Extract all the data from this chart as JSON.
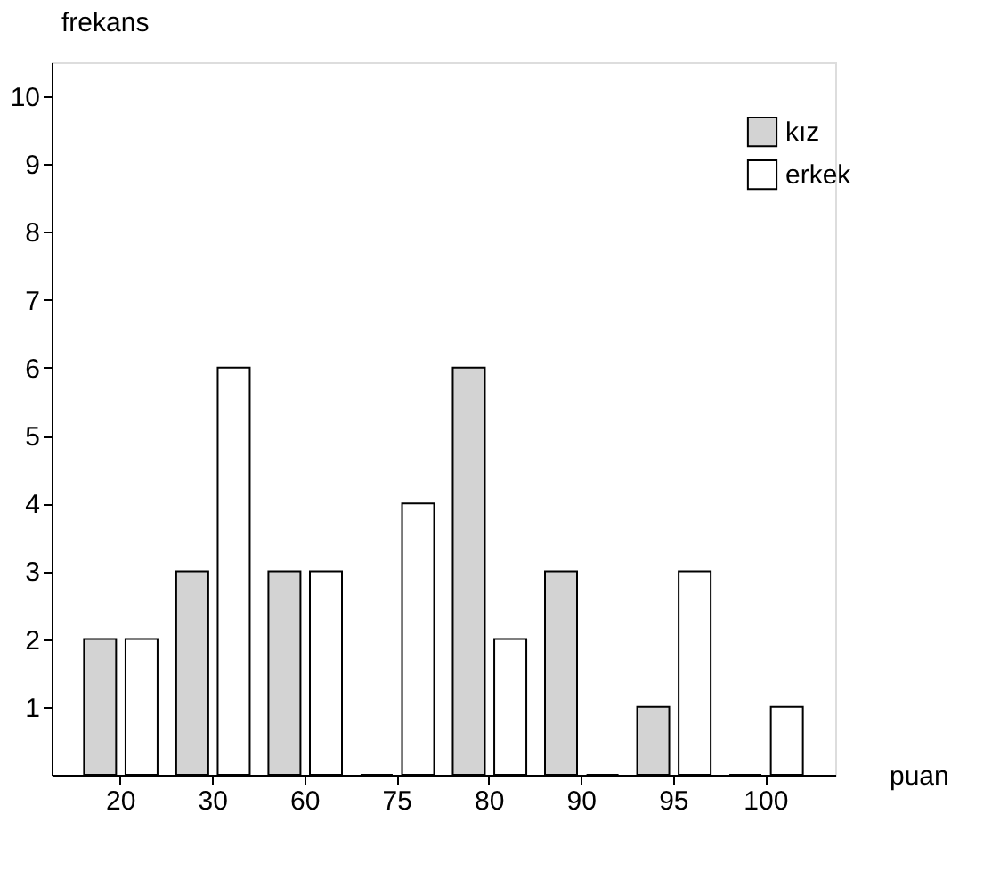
{
  "chart_data": {
    "type": "bar",
    "xlabel": "puan",
    "ylabel": "frekans",
    "categories": [
      "20",
      "30",
      "60",
      "75",
      "80",
      "90",
      "95",
      "100"
    ],
    "series": [
      {
        "name": "kız",
        "color": "#d3d3d3",
        "values": [
          2,
          3,
          3,
          0,
          6,
          3,
          1,
          0
        ]
      },
      {
        "name": "erkek",
        "color": "#ffffff",
        "values": [
          2,
          6,
          3,
          4,
          2,
          0,
          3,
          1
        ]
      }
    ],
    "ylim": [
      0,
      10.5
    ],
    "yticks": [
      1,
      2,
      3,
      4,
      5,
      6,
      7,
      8,
      9,
      10
    ],
    "grid": false,
    "legend": "top right"
  }
}
